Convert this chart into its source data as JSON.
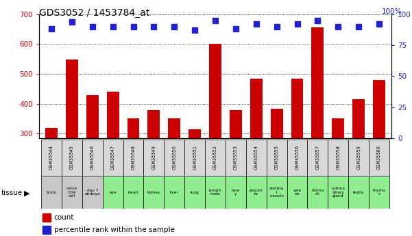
{
  "title": "GDS3052 / 1453784_at",
  "gsm_labels": [
    "GSM35544",
    "GSM35545",
    "GSM35546",
    "GSM35547",
    "GSM35548",
    "GSM35549",
    "GSM35550",
    "GSM35551",
    "GSM35552",
    "GSM35553",
    "GSM35554",
    "GSM35555",
    "GSM35556",
    "GSM35557",
    "GSM35558",
    "GSM35559",
    "GSM35560"
  ],
  "tissue_labels": [
    "brain",
    "naive\nCD4\ncell",
    "day 7\nembryо",
    "eye",
    "heart",
    "kidney",
    "liver",
    "lung",
    "lymph\nnode",
    "ovar\ny",
    "placen\nta",
    "skeleta\nl\nmuscle",
    "sple\nen",
    "stoma\nch",
    "subma\nxillary\ngland",
    "testis",
    "thymu\ns"
  ],
  "tissue_colors": [
    "#c8c8c8",
    "#c8c8c8",
    "#c8c8c8",
    "#90ee90",
    "#90ee90",
    "#90ee90",
    "#90ee90",
    "#90ee90",
    "#90ee90",
    "#90ee90",
    "#90ee90",
    "#90ee90",
    "#90ee90",
    "#90ee90",
    "#90ee90",
    "#90ee90",
    "#90ee90"
  ],
  "count_values": [
    320,
    548,
    430,
    440,
    350,
    378,
    352,
    315,
    600,
    378,
    485,
    383,
    485,
    655,
    352,
    415,
    480
  ],
  "percentile_values": [
    88,
    94,
    90,
    90,
    90,
    90,
    90,
    87,
    95,
    88,
    92,
    90,
    92,
    95,
    90,
    90,
    92
  ],
  "ylim_left": [
    285,
    700
  ],
  "ylim_right": [
    0,
    100
  ],
  "yticks_left": [
    300,
    400,
    500,
    600,
    700
  ],
  "yticks_right": [
    0,
    25,
    50,
    75,
    100
  ],
  "bar_color": "#cc0000",
  "dot_color": "#2222cc",
  "bg_color": "#ffffff",
  "grid_color": "#000000",
  "left_tick_color": "#cc0000",
  "right_tick_color": "#2222cc",
  "gsm_cell_color": "#d8d8d8"
}
